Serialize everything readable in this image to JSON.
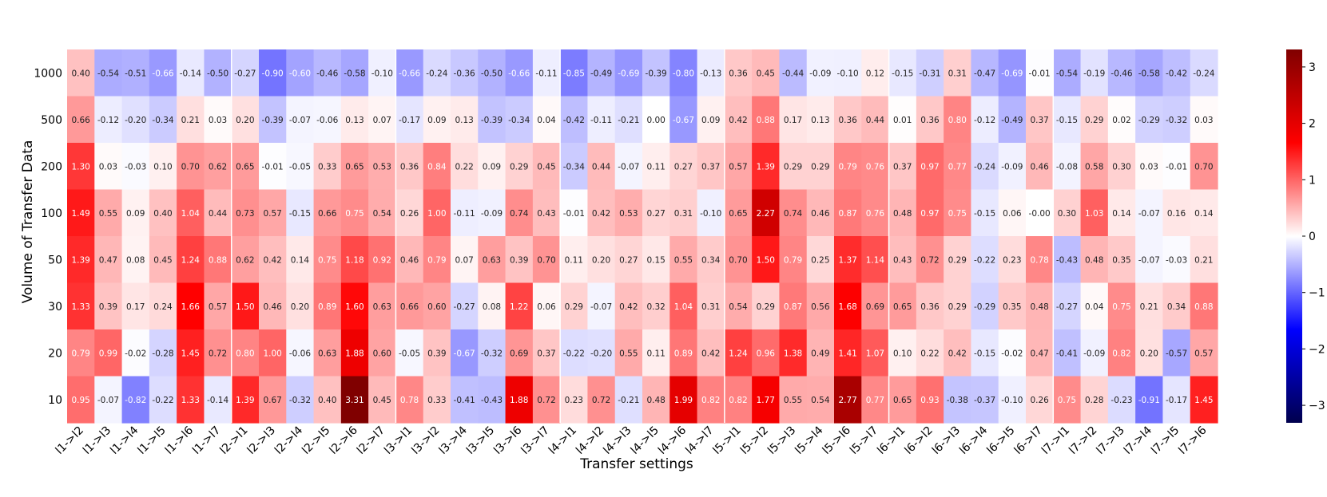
{
  "chart_data": {
    "type": "heatmap",
    "xlabel": "Transfer settings",
    "ylabel": "Volume of Transfer Data",
    "columns": [
      "l1->l2",
      "l1->l3",
      "l1->l4",
      "l1->l5",
      "l1->l6",
      "l1->l7",
      "l2->l1",
      "l2->l3",
      "l2->l4",
      "l2->l5",
      "l2->l6",
      "l2->l7",
      "l3->l1",
      "l3->l2",
      "l3->l4",
      "l3->l5",
      "l3->l6",
      "l3->l7",
      "l4->l1",
      "l4->l2",
      "l4->l3",
      "l4->l5",
      "l4->l6",
      "l4->l7",
      "l5->l1",
      "l5->l2",
      "l5->l3",
      "l5->l4",
      "l5->l6",
      "l5->l7",
      "l6->l1",
      "l6->l2",
      "l6->l3",
      "l6->l4",
      "l6->l5",
      "l6->l7",
      "l7->l1",
      "l7->l2",
      "l7->l3",
      "l7->l4",
      "l7->l5",
      "l7->l6"
    ],
    "rows": [
      "1000",
      "500",
      "200",
      "100",
      "50",
      "30",
      "20",
      "10"
    ],
    "values": [
      [
        "0.40",
        "-0.54",
        "-0.51",
        "-0.66",
        "-0.14",
        "-0.50",
        "-0.27",
        "-0.90",
        "-0.60",
        "-0.46",
        "-0.58",
        "-0.10",
        "-0.66",
        "-0.24",
        "-0.36",
        "-0.50",
        "-0.66",
        "-0.11",
        "-0.85",
        "-0.49",
        "-0.69",
        "-0.39",
        "-0.80",
        "-0.13",
        "0.36",
        "0.45",
        "-0.44",
        "-0.09",
        "-0.10",
        "0.12",
        "-0.15",
        "-0.31",
        "0.31",
        "-0.47",
        "-0.69",
        "-0.01",
        "-0.54",
        "-0.19",
        "-0.46",
        "-0.58",
        "-0.42",
        "-0.24"
      ],
      [
        "0.66",
        "-0.12",
        "-0.20",
        "-0.34",
        "0.21",
        "0.03",
        "0.20",
        "-0.39",
        "-0.07",
        "-0.06",
        "0.13",
        "0.07",
        "-0.17",
        "0.09",
        "0.13",
        "-0.39",
        "-0.34",
        "0.04",
        "-0.42",
        "-0.11",
        "-0.21",
        "0.00",
        "-0.67",
        "0.09",
        "0.42",
        "0.88",
        "0.17",
        "0.13",
        "0.36",
        "0.44",
        "0.01",
        "0.36",
        "0.80",
        "-0.12",
        "-0.49",
        "0.37",
        "-0.15",
        "0.29",
        "0.02",
        "-0.29",
        "-0.32",
        "0.03"
      ],
      [
        "1.30",
        "0.03",
        "-0.03",
        "0.10",
        "0.70",
        "0.62",
        "0.65",
        "-0.01",
        "-0.05",
        "0.33",
        "0.65",
        "0.53",
        "0.36",
        "0.84",
        "0.22",
        "0.09",
        "0.29",
        "0.45",
        "-0.34",
        "0.44",
        "-0.07",
        "0.11",
        "0.27",
        "0.37",
        "0.57",
        "1.39",
        "0.29",
        "0.29",
        "0.79",
        "0.76",
        "0.37",
        "0.97",
        "0.77",
        "-0.24",
        "-0.09",
        "0.46",
        "-0.08",
        "0.58",
        "0.30",
        "0.03",
        "-0.01",
        "0.70"
      ],
      [
        "1.49",
        "0.55",
        "0.09",
        "0.40",
        "1.04",
        "0.44",
        "0.73",
        "0.57",
        "-0.15",
        "0.66",
        "0.75",
        "0.54",
        "0.26",
        "1.00",
        "-0.11",
        "-0.09",
        "0.74",
        "0.43",
        "-0.01",
        "0.42",
        "0.53",
        "0.27",
        "0.31",
        "-0.10",
        "0.65",
        "2.27",
        "0.74",
        "0.46",
        "0.87",
        "0.76",
        "0.48",
        "0.97",
        "0.75",
        "-0.15",
        "0.06",
        "-0.00",
        "0.30",
        "1.03",
        "0.14",
        "-0.07",
        "0.16",
        "0.14"
      ],
      [
        "1.39",
        "0.47",
        "0.08",
        "0.45",
        "1.24",
        "0.88",
        "0.62",
        "0.42",
        "0.14",
        "0.75",
        "1.18",
        "0.92",
        "0.46",
        "0.79",
        "0.07",
        "0.63",
        "0.39",
        "0.70",
        "0.11",
        "0.20",
        "0.27",
        "0.15",
        "0.55",
        "0.34",
        "0.70",
        "1.50",
        "0.79",
        "0.25",
        "1.37",
        "1.14",
        "0.43",
        "0.72",
        "0.29",
        "-0.22",
        "0.23",
        "0.78",
        "-0.43",
        "0.48",
        "0.35",
        "-0.07",
        "-0.03",
        "0.21"
      ],
      [
        "1.33",
        "0.39",
        "0.17",
        "0.24",
        "1.66",
        "0.57",
        "1.50",
        "0.46",
        "0.20",
        "0.89",
        "1.60",
        "0.63",
        "0.66",
        "0.60",
        "-0.27",
        "0.08",
        "1.22",
        "0.06",
        "0.29",
        "-0.07",
        "0.42",
        "0.32",
        "1.04",
        "0.31",
        "0.54",
        "0.29",
        "0.87",
        "0.56",
        "1.68",
        "0.69",
        "0.65",
        "0.36",
        "0.29",
        "-0.29",
        "0.35",
        "0.48",
        "-0.27",
        "0.04",
        "0.75",
        "0.21",
        "0.34",
        "0.88"
      ],
      [
        "0.79",
        "0.99",
        "-0.02",
        "-0.28",
        "1.45",
        "0.72",
        "0.80",
        "1.00",
        "-0.06",
        "0.63",
        "1.88",
        "0.60",
        "-0.05",
        "0.39",
        "-0.67",
        "-0.32",
        "0.69",
        "0.37",
        "-0.22",
        "-0.20",
        "0.55",
        "0.11",
        "0.89",
        "0.42",
        "1.24",
        "0.96",
        "1.38",
        "0.49",
        "1.41",
        "1.07",
        "0.10",
        "0.22",
        "0.42",
        "-0.15",
        "-0.02",
        "0.47",
        "-0.41",
        "-0.09",
        "0.82",
        "0.20",
        "-0.57",
        "0.57"
      ],
      [
        "0.95",
        "-0.07",
        "-0.82",
        "-0.22",
        "1.33",
        "-0.14",
        "1.39",
        "0.67",
        "-0.32",
        "0.40",
        "3.31",
        "0.45",
        "0.78",
        "0.33",
        "-0.41",
        "-0.43",
        "1.88",
        "0.72",
        "0.23",
        "0.72",
        "-0.21",
        "0.48",
        "1.99",
        "0.82",
        "0.82",
        "1.77",
        "0.55",
        "0.54",
        "2.77",
        "0.77",
        "0.65",
        "0.93",
        "-0.38",
        "-0.37",
        "-0.10",
        "0.26",
        "0.75",
        "0.28",
        "-0.23",
        "-0.91",
        "-0.17",
        "1.45"
      ]
    ],
    "colorbar": {
      "cmap": "seismic",
      "vmin": -3.31,
      "vmax": 3.31,
      "ticks": [
        "3",
        "2",
        "1",
        "0",
        "−1",
        "−2",
        "−3"
      ]
    }
  }
}
